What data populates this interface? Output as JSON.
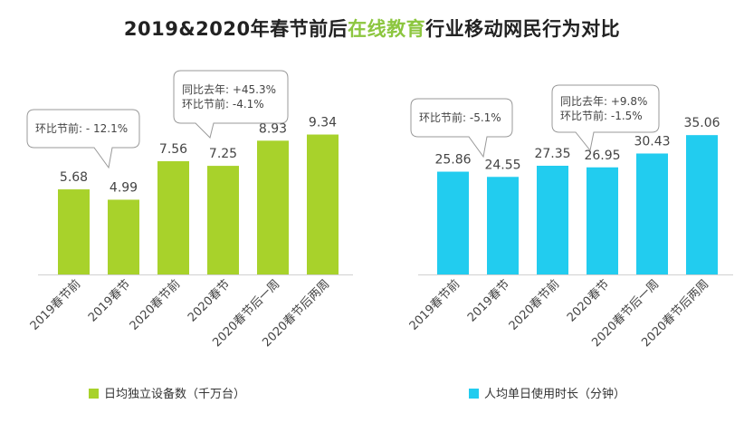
{
  "title": {
    "prefix": "2019&2020年春节前后",
    "highlight": "在线教育",
    "suffix": "行业移动网民行为对比"
  },
  "colors": {
    "title_highlight": "#8cc63f",
    "bar_left": "#a8d22b",
    "bar_right": "#22ccef"
  },
  "chart_data": [
    {
      "type": "bar",
      "categories": [
        "2019春节前",
        "2019春节",
        "2020春节前",
        "2020春节",
        "2020春节后一周",
        "2020春节后两周"
      ],
      "series": [
        {
          "name": "日均独立设备数（千万台）",
          "values": [
            5.68,
            4.99,
            7.56,
            7.25,
            8.93,
            9.34
          ]
        }
      ],
      "value_labels": [
        "5.68",
        "4.99",
        "7.56",
        "7.25",
        "8.93",
        "9.34"
      ],
      "ylim": [
        0,
        13
      ],
      "legend": "bottom-left",
      "annotations": [
        {
          "target": 0,
          "lines": [
            "环比节前: - 12.1%"
          ]
        },
        {
          "target": 2,
          "lines": [
            "同比去年: +45.3%",
            "环比节前: -4.1%"
          ]
        }
      ]
    },
    {
      "type": "bar",
      "categories": [
        "2019春节前",
        "2019春节",
        "2020春节前",
        "2020春节",
        "2020春节后一周",
        "2020春节后两周"
      ],
      "series": [
        {
          "name": "人均单日使用时长（分钟）",
          "values": [
            25.86,
            24.55,
            27.35,
            26.95,
            30.43,
            35.06
          ]
        }
      ],
      "value_labels": [
        "25.86",
        "24.55",
        "27.35",
        "26.95",
        "30.43",
        "35.06"
      ],
      "ylim": [
        0,
        49
      ],
      "legend": "bottom-right",
      "annotations": [
        {
          "target": 0,
          "lines": [
            "环比节前: -5.1%"
          ]
        },
        {
          "target": 2,
          "lines": [
            "同比去年: +9.8%",
            "环比节前: -1.5%"
          ]
        }
      ]
    }
  ]
}
